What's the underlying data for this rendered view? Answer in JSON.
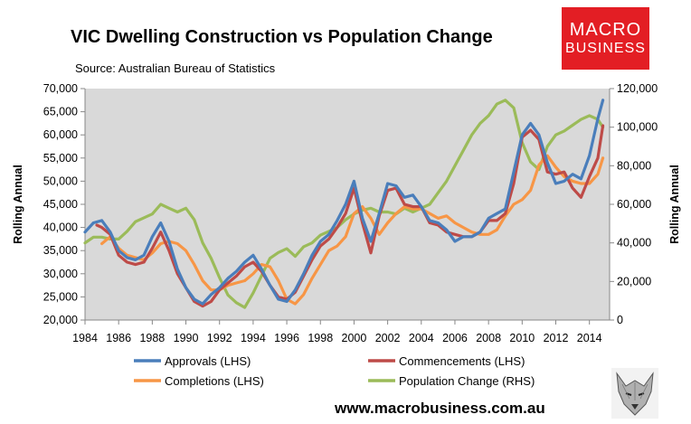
{
  "chart_data": {
    "type": "line",
    "title": "VIC Dwelling Construction vs Population Change",
    "subtitle": "Source: Australian Bureau of Statistics",
    "ylabel": "Rolling Annual",
    "y2label": "Rolling Annual",
    "ylim": [
      20000,
      70000
    ],
    "y2lim": [
      0,
      120000
    ],
    "xlim": [
      1984,
      2015.2
    ],
    "x_ticks": [
      "1984",
      "1986",
      "1988",
      "1990",
      "1992",
      "1994",
      "1996",
      "1998",
      "2000",
      "2002",
      "2004",
      "2006",
      "2008",
      "2010",
      "2012",
      "2014"
    ],
    "y_ticks": [
      "20,000",
      "25,000",
      "30,000",
      "35,000",
      "40,000",
      "45,000",
      "50,000",
      "55,000",
      "60,000",
      "65,000",
      "70,000"
    ],
    "y2_ticks": [
      "0",
      "20,000",
      "40,000",
      "60,000",
      "80,000",
      "100,000",
      "120,000"
    ],
    "series": [
      {
        "name": "Approvals (LHS)",
        "axis": "left",
        "color": "#4a7ebb",
        "x": [
          1984,
          1984.5,
          1985,
          1985.5,
          1986,
          1986.5,
          1987,
          1987.5,
          1988,
          1988.5,
          1989,
          1989.5,
          1990,
          1990.5,
          1991,
          1991.5,
          1992,
          1992.5,
          1993,
          1993.5,
          1994,
          1994.5,
          1995,
          1995.5,
          1996,
          1996.5,
          1997,
          1997.5,
          1998,
          1998.5,
          1999,
          1999.5,
          2000,
          2000.5,
          2001,
          2001.5,
          2002,
          2002.5,
          2003,
          2003.5,
          2004,
          2004.5,
          2005,
          2005.5,
          2006,
          2006.5,
          2007,
          2007.5,
          2008,
          2008.5,
          2009,
          2009.5,
          2010,
          2010.5,
          2011,
          2011.5,
          2012,
          2012.5,
          2013,
          2013.5,
          2014,
          2014.5,
          2014.8
        ],
        "values": [
          39000,
          41000,
          41500,
          39000,
          35000,
          33500,
          33000,
          34000,
          38000,
          41000,
          37000,
          31000,
          27000,
          24500,
          23500,
          25500,
          27000,
          29000,
          30500,
          32500,
          34000,
          31000,
          27500,
          24500,
          24000,
          26500,
          30000,
          34000,
          37000,
          38500,
          41500,
          45000,
          50000,
          42000,
          37000,
          43000,
          49500,
          49000,
          46500,
          47000,
          44500,
          41500,
          41000,
          39500,
          37000,
          38000,
          38000,
          39000,
          42000,
          43000,
          44000,
          52000,
          60000,
          62500,
          60000,
          54000,
          49500,
          50000,
          51500,
          50500,
          55500,
          63500,
          67500
        ]
      },
      {
        "name": "Commencements (LHS)",
        "axis": "left",
        "color": "#be4b48",
        "x": [
          1984.7,
          1985,
          1985.5,
          1986,
          1986.5,
          1987,
          1987.5,
          1988,
          1988.5,
          1989,
          1989.5,
          1990,
          1990.5,
          1991,
          1991.5,
          1992,
          1992.5,
          1993,
          1993.5,
          1994,
          1994.5,
          1995,
          1995.5,
          1996,
          1996.5,
          1997,
          1997.5,
          1998,
          1998.5,
          1999,
          1999.5,
          2000,
          2000.5,
          2001,
          2001.5,
          2002,
          2002.5,
          2003,
          2003.5,
          2004,
          2004.5,
          2005,
          2005.5,
          2006,
          2006.5,
          2007,
          2007.5,
          2008,
          2008.5,
          2009,
          2009.5,
          2010,
          2010.5,
          2011,
          2011.5,
          2012,
          2012.5,
          2013,
          2013.5,
          2014,
          2014.5,
          2014.8
        ],
        "values": [
          40500,
          40000,
          38500,
          34000,
          32500,
          32000,
          32500,
          35500,
          39000,
          35000,
          30000,
          27000,
          24000,
          23000,
          24000,
          26500,
          28000,
          29500,
          31500,
          32500,
          30500,
          27500,
          25000,
          24500,
          26000,
          29500,
          33000,
          36000,
          37500,
          40000,
          43000,
          48500,
          41000,
          34500,
          42500,
          48000,
          48500,
          45000,
          44500,
          44500,
          41000,
          40500,
          39000,
          38500,
          38000,
          38000,
          39000,
          41500,
          41500,
          43000,
          49500,
          59500,
          61000,
          59000,
          52000,
          51500,
          52000,
          48500,
          46500,
          51000,
          55000,
          62000
        ]
      },
      {
        "name": "Completions (LHS)",
        "axis": "left",
        "color": "#f79646",
        "x": [
          1985,
          1985.5,
          1986,
          1986.5,
          1987,
          1987.5,
          1988,
          1988.5,
          1989,
          1989.5,
          1990,
          1990.5,
          1991,
          1991.5,
          1992,
          1992.5,
          1993,
          1993.5,
          1994,
          1994.5,
          1995,
          1995.5,
          1996,
          1996.5,
          1997,
          1997.5,
          1998,
          1998.5,
          1999,
          1999.5,
          2000,
          2000.5,
          2001,
          2001.5,
          2002,
          2002.5,
          2003,
          2003.5,
          2004,
          2004.5,
          2005,
          2005.5,
          2006,
          2006.5,
          2007,
          2007.5,
          2008,
          2008.5,
          2009,
          2009.5,
          2010,
          2010.5,
          2011,
          2011.5,
          2012,
          2012.5,
          2013,
          2013.5,
          2014,
          2014.5,
          2014.8
        ],
        "values": [
          36500,
          38000,
          35500,
          34000,
          33500,
          33000,
          34500,
          36500,
          37000,
          36500,
          35000,
          32000,
          28500,
          26500,
          26500,
          27500,
          28000,
          28500,
          30000,
          32000,
          31500,
          28500,
          24500,
          23500,
          25500,
          29000,
          32000,
          35000,
          36000,
          38000,
          43000,
          44500,
          42000,
          38500,
          41000,
          43000,
          44500,
          44000,
          44000,
          43000,
          42000,
          42500,
          41000,
          40000,
          39000,
          38500,
          38500,
          39500,
          42500,
          45000,
          46000,
          48000,
          53500,
          55500,
          53000,
          51000,
          50000,
          49500,
          49500,
          51500,
          55000
        ]
      },
      {
        "name": "Population Change (RHS)",
        "axis": "right",
        "color": "#9bbb59",
        "x": [
          1984,
          1984.5,
          1985,
          1985.5,
          1986,
          1986.5,
          1987,
          1987.5,
          1988,
          1988.5,
          1989,
          1989.5,
          1990,
          1990.5,
          1991,
          1991.5,
          1992,
          1992.5,
          1993,
          1993.5,
          1994,
          1994.5,
          1995,
          1995.5,
          1996,
          1996.5,
          1997,
          1997.5,
          1998,
          1998.5,
          1999,
          1999.5,
          2000,
          2000.5,
          2001,
          2001.5,
          2002,
          2002.5,
          2003,
          2003.5,
          2004,
          2004.5,
          2005,
          2005.5,
          2006,
          2006.5,
          2007,
          2007.5,
          2008,
          2008.5,
          2009,
          2009.5,
          2010,
          2010.5,
          2011,
          2011.5,
          2012,
          2012.5,
          2013,
          2013.5,
          2014,
          2014.5,
          2014.8
        ],
        "values": [
          40000,
          43000,
          43000,
          42000,
          42000,
          46000,
          51000,
          53000,
          55000,
          60000,
          58000,
          56000,
          58000,
          52000,
          40000,
          32000,
          22000,
          13000,
          9000,
          6500,
          14000,
          23000,
          32000,
          35000,
          37000,
          33000,
          38000,
          40000,
          44000,
          46000,
          48000,
          52000,
          55000,
          57000,
          58000,
          56000,
          56000,
          55000,
          58000,
          56000,
          58000,
          60000,
          66000,
          72000,
          80000,
          88000,
          96000,
          102000,
          106000,
          112000,
          114000,
          110000,
          92000,
          82000,
          78000,
          90000,
          96000,
          98000,
          101000,
          104000,
          106000,
          104000,
          100000
        ]
      }
    ]
  },
  "branding": {
    "line1": "MACRO",
    "line2": "BUSINESS",
    "url": "www.macrobusiness.com.au",
    "accent": "#e31e24"
  },
  "legend": {
    "approvals": "Approvals (LHS)",
    "commencements": "Commencements (LHS)",
    "completions": "Completions (LHS)",
    "population": "Population Change (RHS)"
  }
}
